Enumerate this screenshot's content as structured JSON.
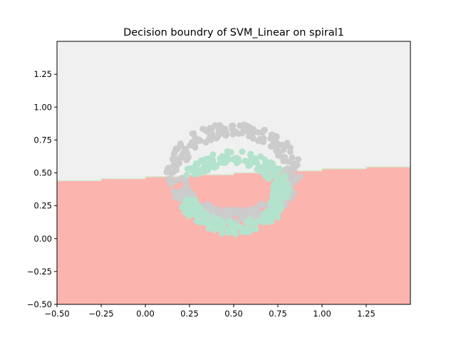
{
  "chart_data": {
    "type": "scatter",
    "title": "Decision boundry of SVM_Linear on spiral1",
    "xlabel": "",
    "ylabel": "",
    "xlim": [
      -0.5,
      1.5
    ],
    "ylim": [
      -0.5,
      1.5
    ],
    "x_ticks": [
      -0.5,
      -0.25,
      0.0,
      0.25,
      0.5,
      0.75,
      1.0,
      1.25
    ],
    "x_tick_labels": [
      "−0.50",
      "−0.25",
      "0.00",
      "0.25",
      "0.50",
      "0.75",
      "1.00",
      "1.25"
    ],
    "y_ticks": [
      -0.5,
      -0.25,
      0.0,
      0.25,
      0.5,
      0.75,
      1.0,
      1.25
    ],
    "y_tick_labels": [
      "−0.50",
      "−0.25",
      "0.00",
      "0.25",
      "0.50",
      "0.75",
      "1.00",
      "1.25"
    ],
    "grid": false,
    "legend": "none",
    "decision_boundary": {
      "type": "linear",
      "x": [
        -0.5,
        1.5
      ],
      "y": [
        0.43,
        0.55
      ],
      "region_above_color": "#f0f0f0",
      "region_below_color": "#fbb4ae",
      "edge_colors": [
        "#ccebc5",
        "#fed9a6"
      ]
    },
    "series": [
      {
        "color": "#cccccc",
        "shape": "ring",
        "center": [
          0.5,
          0.5
        ],
        "radius_range": [
          0.28,
          0.38
        ],
        "angle_range_deg": [
          0,
          360
        ],
        "count": 320
      },
      {
        "color": "#b3e2cd",
        "shape": "ring",
        "center": [
          0.5,
          0.35
        ],
        "radius_range": [
          0.22,
          0.32
        ],
        "angle_range_deg": [
          -170,
          155
        ],
        "count": 320
      }
    ]
  }
}
